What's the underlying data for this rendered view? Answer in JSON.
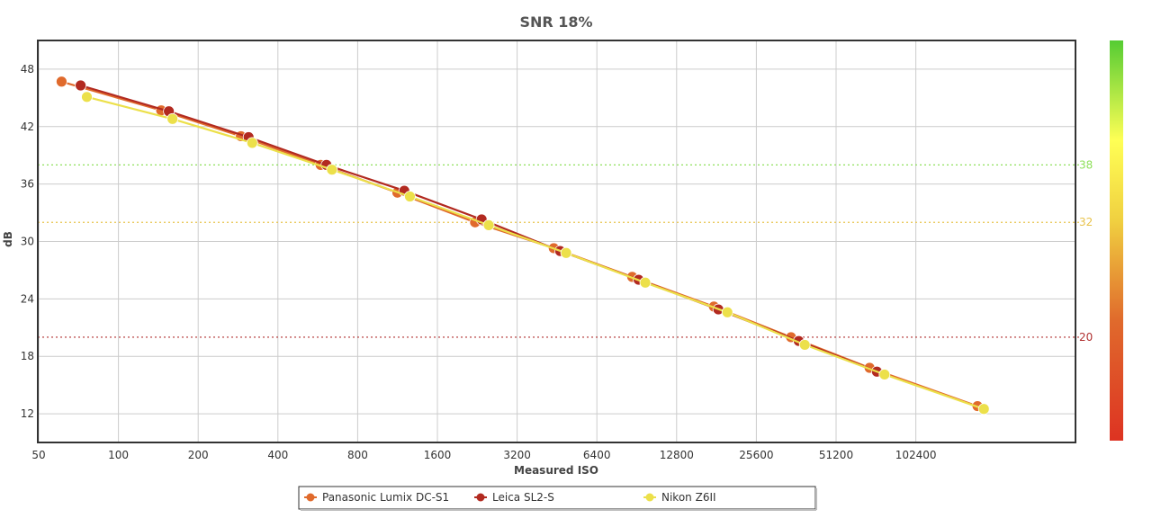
{
  "chart_data": {
    "type": "line",
    "title": "SNR 18%",
    "xlabel": "Measured ISO",
    "ylabel": "dB",
    "x_scale": "log2",
    "xlim": [
      50,
      409600
    ],
    "ylim": [
      9,
      51
    ],
    "x_ticks": [
      50,
      100,
      200,
      400,
      800,
      1600,
      3200,
      6400,
      12800,
      25600,
      51200,
      102400
    ],
    "y_ticks": [
      12,
      18,
      24,
      30,
      36,
      42,
      48
    ],
    "grid": true,
    "legend_position": "bottom",
    "reference_lines": [
      {
        "value": 38,
        "label": "38",
        "color": "#8ee05a"
      },
      {
        "value": 32,
        "label": "32",
        "color": "#e8c24a"
      },
      {
        "value": 20,
        "label": "20",
        "color": "#b03030"
      }
    ],
    "series": [
      {
        "name": "Panasonic Lumix DC-S1",
        "color": "#e06a2c",
        "points": [
          [
            61,
            46.7
          ],
          [
            145,
            43.7
          ],
          [
            290,
            41.0
          ],
          [
            580,
            38.0
          ],
          [
            1130,
            35.1
          ],
          [
            2220,
            32.0
          ],
          [
            4400,
            29.3
          ],
          [
            8700,
            26.3
          ],
          [
            17700,
            23.2
          ],
          [
            34600,
            20.0
          ],
          [
            68500,
            16.8
          ],
          [
            175000,
            12.8
          ]
        ]
      },
      {
        "name": "Leica SL2-S",
        "color": "#b22a20",
        "points": [
          [
            72,
            46.3
          ],
          [
            155,
            43.6
          ],
          [
            310,
            40.9
          ],
          [
            610,
            38.0
          ],
          [
            1200,
            35.3
          ],
          [
            2350,
            32.3
          ],
          [
            4650,
            29.0
          ],
          [
            9200,
            26.0
          ],
          [
            18400,
            22.9
          ],
          [
            37000,
            19.6
          ],
          [
            73000,
            16.4
          ]
        ]
      },
      {
        "name": "Nikon Z6II",
        "color": "#ece04a",
        "points": [
          [
            76,
            45.1
          ],
          [
            160,
            42.8
          ],
          [
            320,
            40.3
          ],
          [
            640,
            37.5
          ],
          [
            1260,
            34.7
          ],
          [
            2500,
            31.7
          ],
          [
            4900,
            28.8
          ],
          [
            9750,
            25.7
          ],
          [
            19900,
            22.6
          ],
          [
            39000,
            19.2
          ],
          [
            78000,
            16.1
          ],
          [
            185000,
            12.5
          ]
        ]
      }
    ],
    "colorbar": {
      "colors": [
        "#dd3322",
        "#e07030",
        "#f0e040",
        "#ffff55",
        "#55cc33"
      ]
    }
  }
}
